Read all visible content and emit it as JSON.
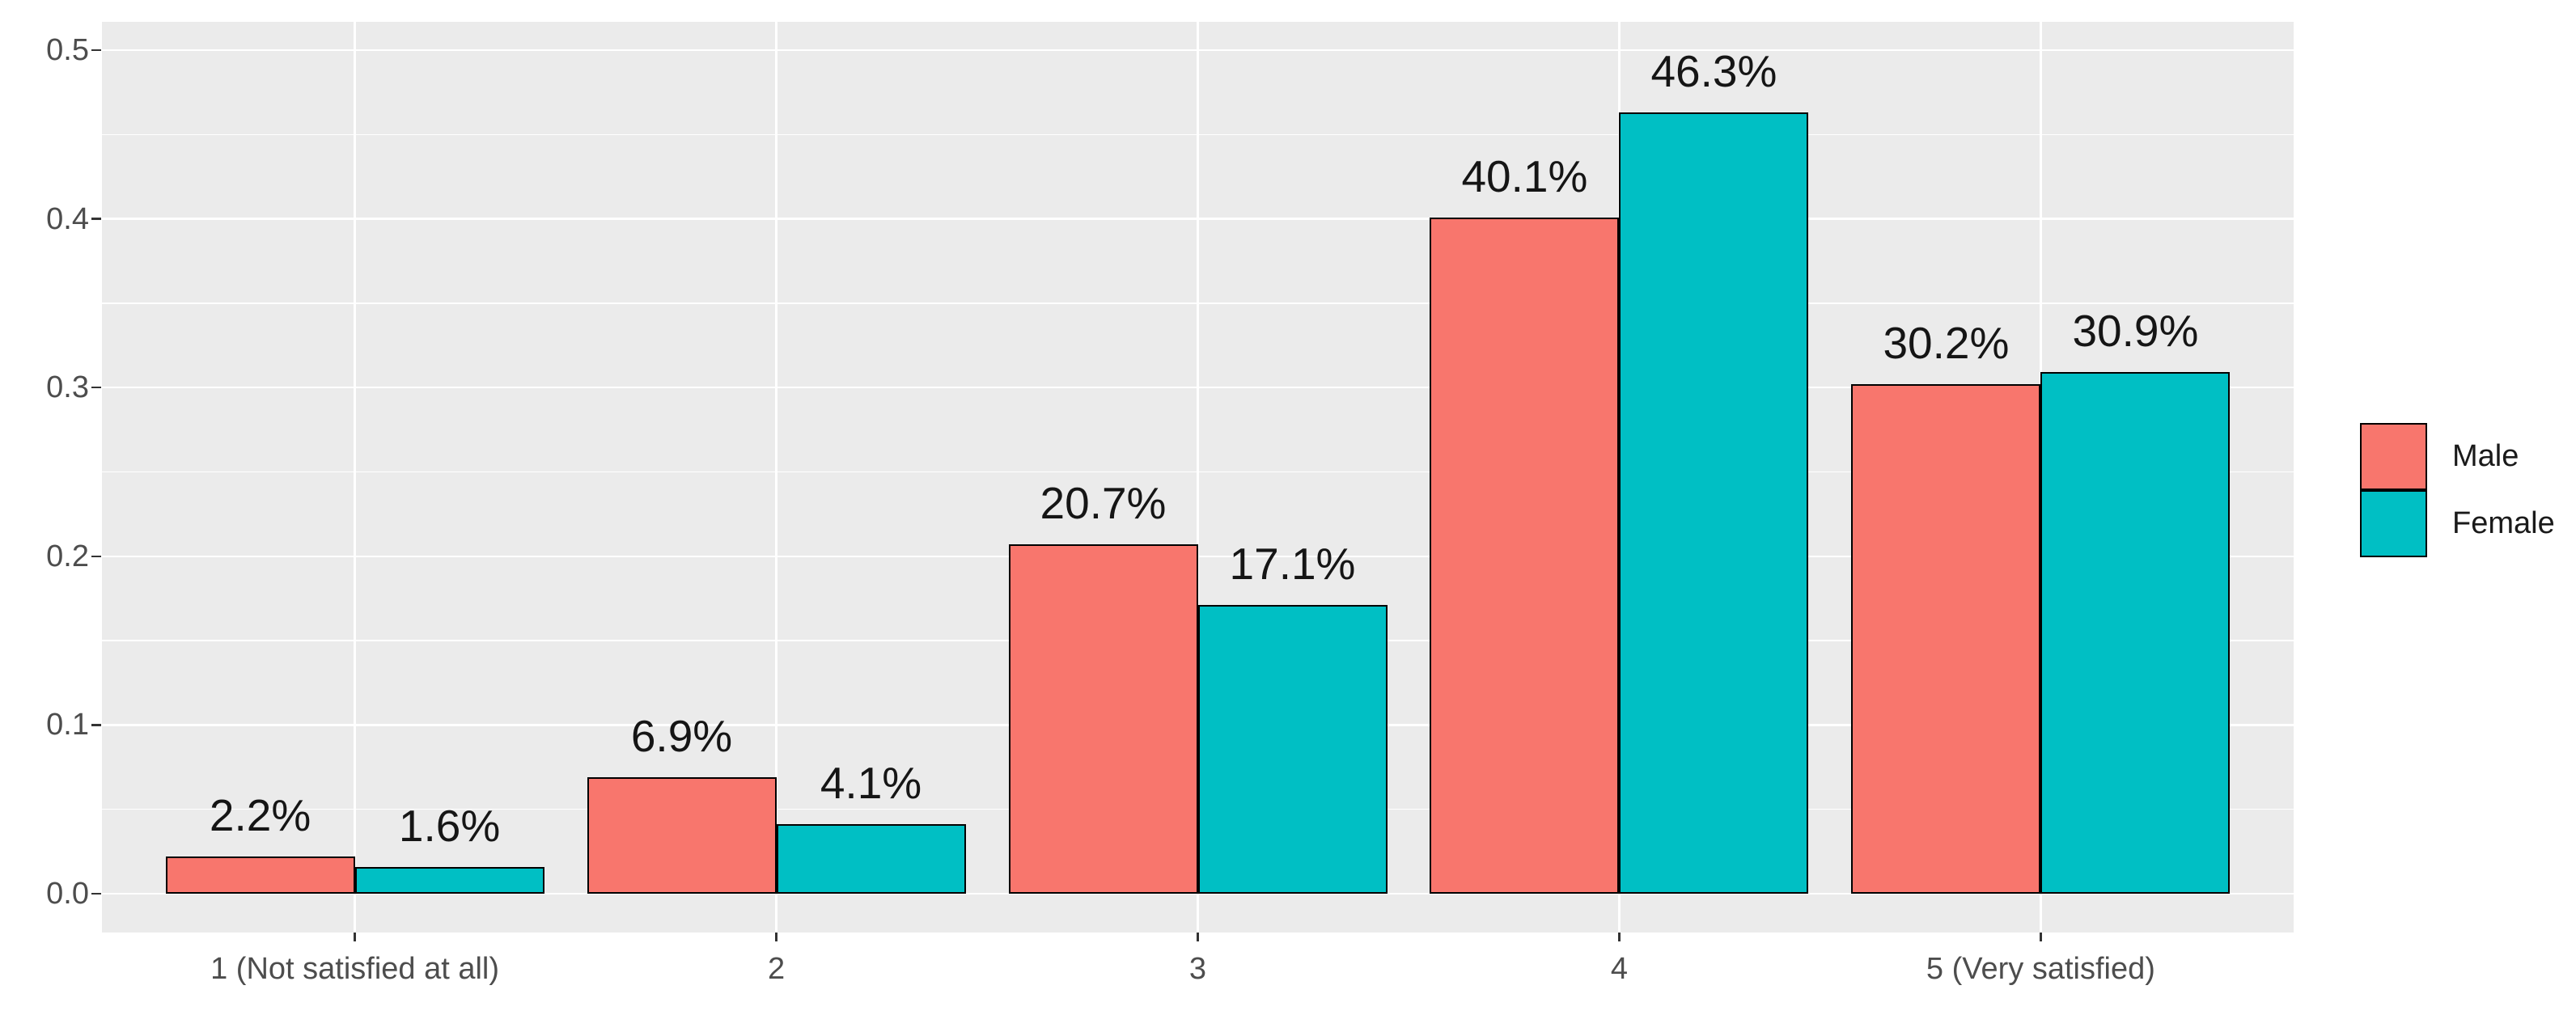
{
  "chart_data": {
    "type": "bar",
    "title": "",
    "xlabel": "",
    "ylabel": "",
    "categories": [
      "1 (Not satisfied at all)",
      "2",
      "3",
      "4",
      "5 (Very satisfied)"
    ],
    "series": [
      {
        "name": "Male",
        "color": "#F8766D",
        "values": [
          0.022,
          0.069,
          0.207,
          0.401,
          0.302
        ],
        "labels": [
          "2.2%",
          "6.9%",
          "20.7%",
          "40.1%",
          "30.2%"
        ]
      },
      {
        "name": "Female",
        "color": "#00BFC4",
        "values": [
          0.016,
          0.041,
          0.171,
          0.463,
          0.309
        ],
        "labels": [
          "1.6%",
          "4.1%",
          "17.1%",
          "46.3%",
          "30.9%"
        ]
      }
    ],
    "y_axis": {
      "ticks": [
        0.0,
        0.1,
        0.2,
        0.3,
        0.4,
        0.5
      ],
      "tick_labels": [
        "0.0",
        "0.1",
        "0.2",
        "0.3",
        "0.4",
        "0.5"
      ],
      "minor_ticks": [
        0.05,
        0.15,
        0.25,
        0.35,
        0.45
      ],
      "ylim": [
        -0.023,
        0.517
      ]
    },
    "legend": {
      "position": "right",
      "items": [
        {
          "label": "Male",
          "color": "#F8766D"
        },
        {
          "label": "Female",
          "color": "#00BFC4"
        }
      ]
    },
    "style": {
      "panel_bg": "#EBEBEB",
      "grid_color": "#FFFFFF",
      "bar_stroke": "#000000",
      "axis_text_color": "#4D4D4D",
      "label_color": "#151515",
      "tick_color": "#333333"
    }
  }
}
